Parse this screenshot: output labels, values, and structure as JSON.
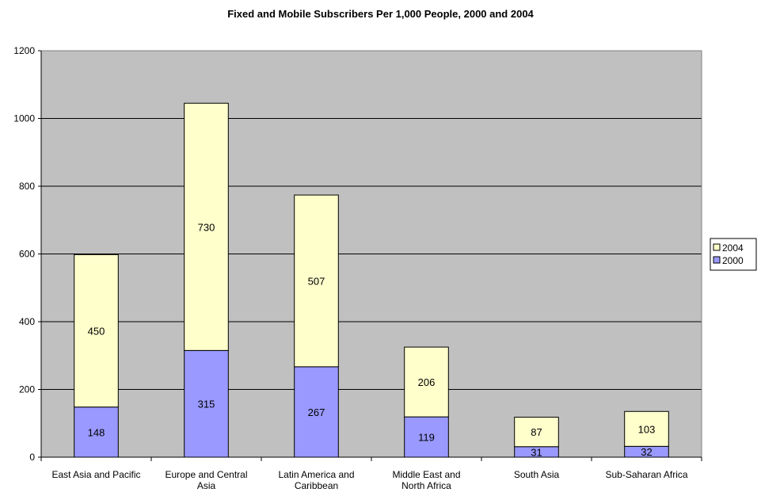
{
  "chart_data": {
    "type": "bar",
    "stacked": true,
    "title": "Fixed and Mobile Subscribers Per 1,000 People, 2000 and 2004",
    "xlabel": "",
    "ylabel": "",
    "ylim": [
      0,
      1200
    ],
    "yticks": [
      0,
      200,
      400,
      600,
      800,
      1000,
      1200
    ],
    "grid": true,
    "legend_position": "right",
    "categories": [
      [
        "East Asia and Pacific"
      ],
      [
        "Europe and Central",
        "Asia"
      ],
      [
        "Latin America and",
        "Caribbean"
      ],
      [
        "Middle East and",
        "North Africa"
      ],
      [
        "South Asia"
      ],
      [
        "Sub-Saharan Africa"
      ]
    ],
    "series": [
      {
        "name": "2000",
        "color": "#9999ff",
        "values": [
          148,
          315,
          267,
          119,
          31,
          32
        ]
      },
      {
        "name": "2004",
        "color": "#ffffcc",
        "values": [
          450,
          730,
          507,
          206,
          87,
          103
        ]
      }
    ],
    "legend_order": [
      "2004",
      "2000"
    ],
    "plot_background": "#c0c0c0"
  }
}
